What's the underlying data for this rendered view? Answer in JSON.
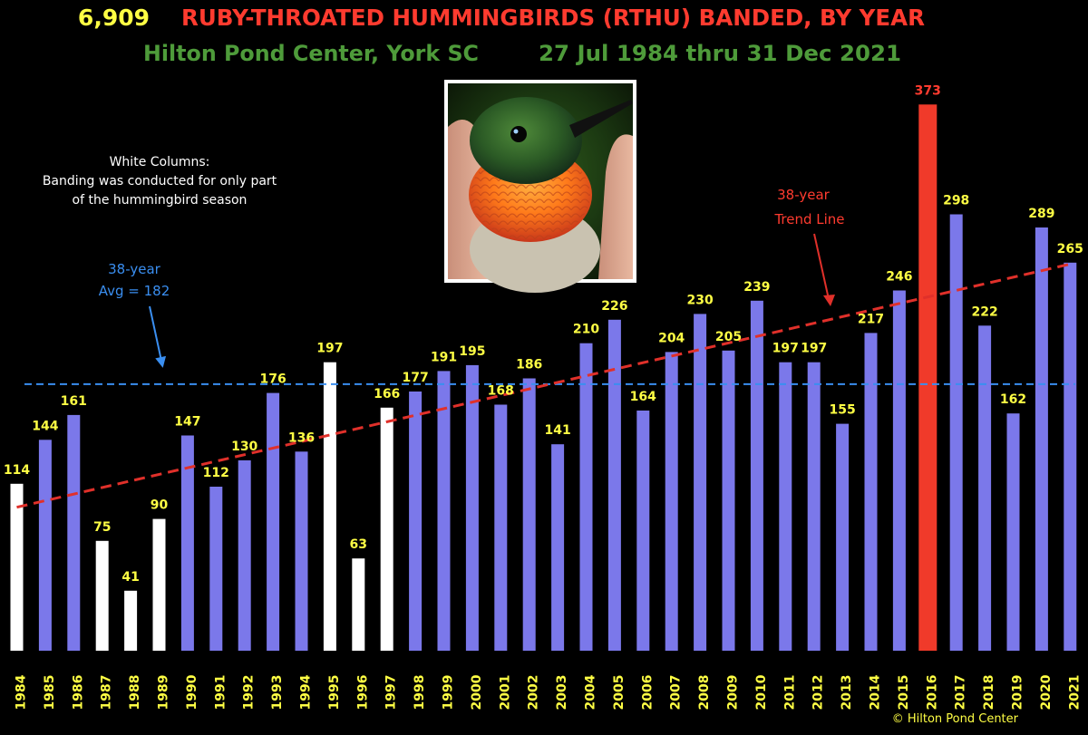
{
  "title": {
    "count": "6,909",
    "main": "RUBY-THROATED HUMMINGBIRDS (RTHU) BANDED, BY YEAR",
    "location": "Hilton Pond Center, York SC",
    "dates": "27 Jul 1984 thru 31 Dec 2021"
  },
  "notes": {
    "white_columns_line1": "White Columns:",
    "white_columns_line2": "Banding was conducted for only part",
    "white_columns_line3": "of the hummingbird season",
    "avg_line1": "38-year",
    "avg_line2": "Avg = 182",
    "trend_line1": "38-year",
    "trend_line2": "Trend Line"
  },
  "copyright": "© Hilton Pond Center",
  "photo": {
    "subject": "ruby-throated hummingbird"
  },
  "colors": {
    "background": "#000000",
    "full_season_bar": "#7b78ea",
    "partial_season_bar": "#ffffff",
    "highlight_bar": "#f03a2a",
    "value_label": "#ffff44",
    "highlight_label": "#ff3b2f",
    "count_text": "#ffff44",
    "title_text": "#ff3b2f",
    "subtitle_text": "#4e9b3a",
    "avg_line": "#3a8ef0",
    "trend_line": "#e0302a",
    "note_text": "#ffffff",
    "copyright_text": "#ffff44"
  },
  "chart_data": {
    "type": "bar",
    "categories": [
      "1984",
      "1985",
      "1986",
      "1987",
      "1988",
      "1989",
      "1990",
      "1991",
      "1992",
      "1993",
      "1994",
      "1995",
      "1996",
      "1997",
      "1998",
      "1999",
      "2000",
      "2001",
      "2002",
      "2003",
      "2004",
      "2005",
      "2006",
      "2007",
      "2008",
      "2009",
      "2010",
      "2011",
      "2012",
      "2013",
      "2014",
      "2015",
      "2016",
      "2017",
      "2018",
      "2019",
      "2020",
      "2021"
    ],
    "values": [
      114,
      144,
      161,
      75,
      41,
      90,
      147,
      112,
      130,
      176,
      136,
      197,
      63,
      166,
      177,
      191,
      195,
      168,
      186,
      141,
      210,
      226,
      164,
      204,
      230,
      205,
      239,
      197,
      197,
      155,
      217,
      246,
      373,
      298,
      222,
      162,
      289,
      265
    ],
    "bar_kind": [
      "partial",
      "full",
      "full",
      "partial",
      "partial",
      "partial",
      "full",
      "full",
      "full",
      "full",
      "full",
      "partial",
      "partial",
      "partial",
      "full",
      "full",
      "full",
      "full",
      "full",
      "full",
      "full",
      "full",
      "full",
      "full",
      "full",
      "full",
      "full",
      "full",
      "full",
      "full",
      "full",
      "full",
      "highlight",
      "full",
      "full",
      "full",
      "full",
      "full"
    ],
    "ylim": [
      0,
      380
    ],
    "average": 182,
    "trend": {
      "start": 98,
      "end": 264
    },
    "grid": false,
    "xlabel": "",
    "ylabel": ""
  }
}
